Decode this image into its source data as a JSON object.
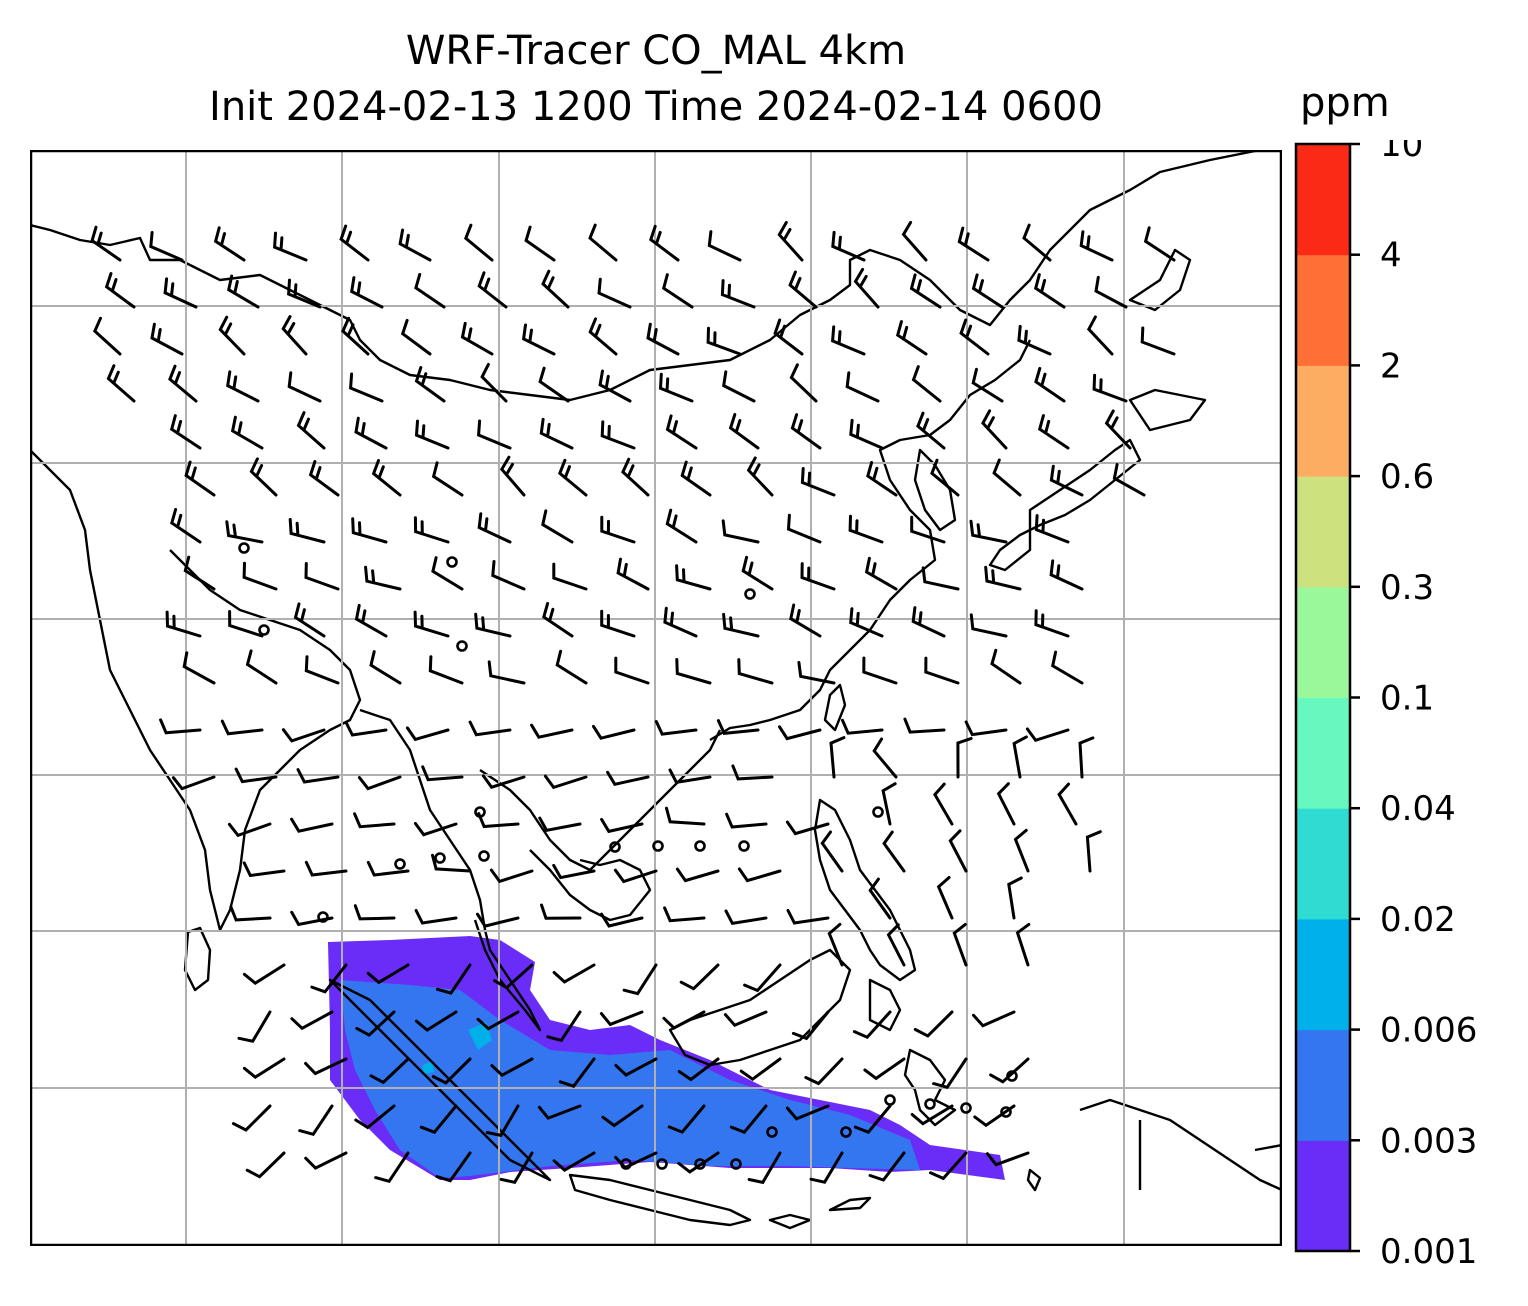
{
  "title": {
    "line1": "WRF-Tracer CO_MAL 4km",
    "line2": "Init 2024-02-13 1200 Time 2024-02-14 0600"
  },
  "colorbar": {
    "unit": "ppm",
    "ticks": [
      "0.001",
      "0.003",
      "0.006",
      "0.02",
      "0.04",
      "0.1",
      "0.3",
      "0.6",
      "2",
      "4",
      "10"
    ],
    "colors": [
      "#6a2df7",
      "#3476f0",
      "#00b0ea",
      "#2fdcd2",
      "#67f8bf",
      "#9af79a",
      "#cde17f",
      "#fcad62",
      "#ff7037",
      "#fb2a17"
    ]
  },
  "map": {
    "gridlines": true,
    "calm_wind_marker": "circle",
    "wind_barbs": "visible"
  }
}
